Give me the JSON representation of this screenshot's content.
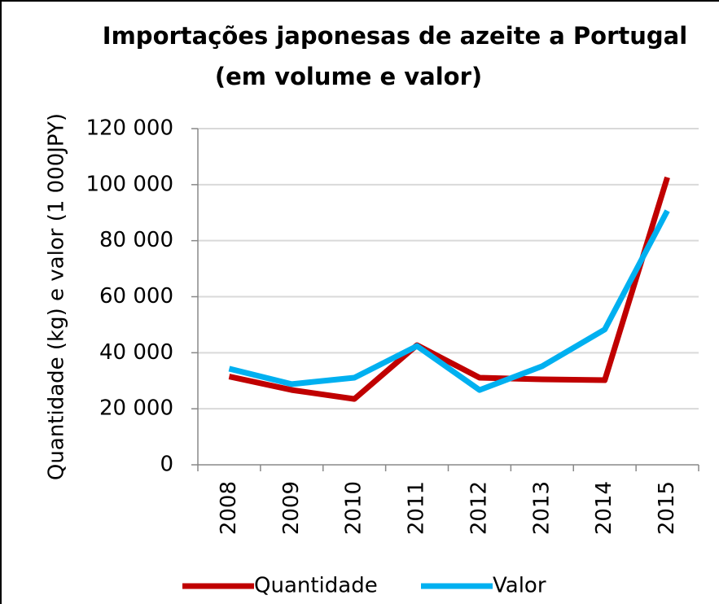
{
  "chart_data": {
    "type": "line",
    "title": [
      "Importações japonesas de azeite a Portugal",
      "(em volume e valor)"
    ],
    "y_label": "Quantidade (kg) e valor (1 000JPY)",
    "categories": [
      "2008",
      "2009",
      "2010",
      "2011",
      "2012",
      "2013",
      "2014",
      "2015"
    ],
    "series": [
      {
        "name": "Quantidade",
        "color": "#c00000",
        "values": [
          31500,
          26700,
          23500,
          42700,
          31100,
          30500,
          30200,
          102600
        ]
      },
      {
        "name": "Valor",
        "color": "#00b0f0",
        "values": [
          34300,
          28800,
          31100,
          42400,
          26700,
          35200,
          48300,
          90700
        ]
      }
    ],
    "ylim": [
      0,
      120000
    ],
    "yticks": [
      0,
      {
        "value": 20000,
        "label": "20 000"
      },
      {
        "value": 40000,
        "label": "40 000"
      },
      {
        "value": 60000,
        "label": "60 000"
      },
      {
        "value": 80000,
        "label": "80 000"
      },
      {
        "value": 100000,
        "label": "100 000"
      },
      {
        "value": 120000,
        "label": "120 000"
      }
    ],
    "grid": true,
    "legend": "bottom"
  }
}
